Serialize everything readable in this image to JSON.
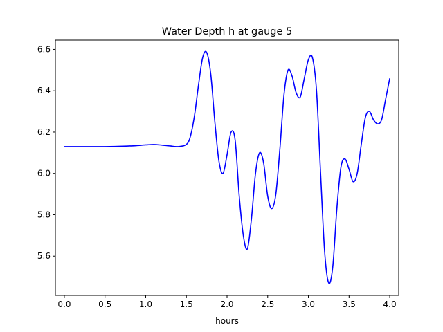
{
  "chart_data": {
    "type": "line",
    "title": "Water Depth h at gauge 5",
    "xlabel": "hours",
    "ylabel": "",
    "xlim": [
      -0.11,
      4.11
    ],
    "ylim": [
      5.41,
      6.645
    ],
    "xticks": [
      0.0,
      0.5,
      1.0,
      1.5,
      2.0,
      2.5,
      3.0,
      3.5,
      4.0
    ],
    "xtick_labels": [
      "0.0",
      "0.5",
      "1.0",
      "1.5",
      "2.0",
      "2.5",
      "3.0",
      "3.5",
      "4.0"
    ],
    "yticks": [
      5.6,
      5.8,
      6.0,
      6.2,
      6.4,
      6.6
    ],
    "ytick_labels": [
      "5.6",
      "5.8",
      "6.0",
      "6.2",
      "6.4",
      "6.6"
    ],
    "grid": false,
    "series": [
      {
        "color": "#0000ff",
        "x": [
          0.0,
          0.5,
          0.8,
          0.9,
          1.0,
          1.1,
          1.2,
          1.3,
          1.4,
          1.5,
          1.55,
          1.6,
          1.65,
          1.7,
          1.75,
          1.8,
          1.85,
          1.9,
          1.95,
          2.0,
          2.05,
          2.1,
          2.15,
          2.2,
          2.25,
          2.3,
          2.35,
          2.4,
          2.45,
          2.5,
          2.55,
          2.6,
          2.65,
          2.7,
          2.75,
          2.8,
          2.85,
          2.9,
          2.95,
          3.0,
          3.05,
          3.1,
          3.15,
          3.2,
          3.25,
          3.3,
          3.35,
          3.4,
          3.45,
          3.5,
          3.55,
          3.6,
          3.65,
          3.7,
          3.75,
          3.8,
          3.85,
          3.9,
          3.95,
          4.0
        ],
        "y": [
          6.13,
          6.13,
          6.133,
          6.135,
          6.138,
          6.14,
          6.137,
          6.133,
          6.13,
          6.14,
          6.18,
          6.28,
          6.43,
          6.56,
          6.585,
          6.48,
          6.25,
          6.06,
          6.0,
          6.09,
          6.2,
          6.16,
          5.89,
          5.7,
          5.635,
          5.78,
          6.0,
          6.1,
          6.05,
          5.89,
          5.83,
          5.9,
          6.12,
          6.38,
          6.5,
          6.47,
          6.39,
          6.37,
          6.46,
          6.55,
          6.56,
          6.4,
          6.0,
          5.62,
          5.47,
          5.55,
          5.83,
          6.03,
          6.07,
          6.02,
          5.96,
          6.0,
          6.14,
          6.27,
          6.3,
          6.26,
          6.24,
          6.26,
          6.36,
          6.46
        ]
      }
    ]
  }
}
